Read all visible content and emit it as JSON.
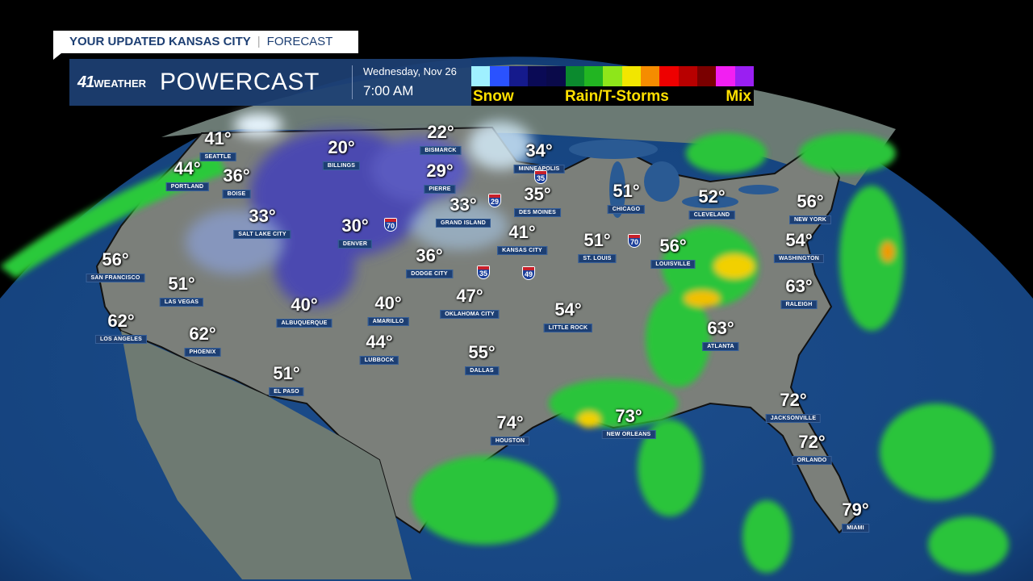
{
  "header": {
    "tab_title": "YOUR UPDATED KANSAS CITY",
    "tab_suffix": "FORECAST",
    "logo_number": "41",
    "logo_text": "WEATHER",
    "product": "POWERCAST",
    "date": "Wednesday, Nov 26",
    "time": "7:00 AM"
  },
  "legend": {
    "labels": {
      "snow": "Snow",
      "rain": "Rain/T-Storms",
      "mix": "Mix"
    },
    "colors": [
      "#9ff0ff",
      "#2a52ff",
      "#151a8c",
      "#0a0a55",
      "#0a0a4a",
      "#0b8a2e",
      "#22b522",
      "#8ee61a",
      "#f2e600",
      "#f58c00",
      "#ee0000",
      "#b80000",
      "#7a0000",
      "#f21ff2",
      "#9a1ff2"
    ]
  },
  "cities": [
    {
      "name": "SEATTLE",
      "temp": "41°"
    },
    {
      "name": "PORTLAND",
      "temp": "44°"
    },
    {
      "name": "BOISE",
      "temp": "36°"
    },
    {
      "name": "BILLINGS",
      "temp": "20°"
    },
    {
      "name": "BISMARCK",
      "temp": "22°"
    },
    {
      "name": "MINNEAPOLIS",
      "temp": "34°"
    },
    {
      "name": "PIERRE",
      "temp": "29°"
    },
    {
      "name": "GRAND ISLAND",
      "temp": "33°"
    },
    {
      "name": "DES MOINES",
      "temp": "35°"
    },
    {
      "name": "SALT LAKE CITY",
      "temp": "33°"
    },
    {
      "name": "DENVER",
      "temp": "30°"
    },
    {
      "name": "KANSAS CITY",
      "temp": "41°"
    },
    {
      "name": "DODGE CITY",
      "temp": "36°"
    },
    {
      "name": "SAN FRANCISCO",
      "temp": "56°"
    },
    {
      "name": "CHICAGO",
      "temp": "51°"
    },
    {
      "name": "CLEVELAND",
      "temp": "52°"
    },
    {
      "name": "NEW YORK",
      "temp": "56°"
    },
    {
      "name": "ST. LOUIS",
      "temp": "51°"
    },
    {
      "name": "LOUISVILLE",
      "temp": "56°"
    },
    {
      "name": "WASHINGTON",
      "temp": "54°"
    },
    {
      "name": "LAS VEGAS",
      "temp": "51°"
    },
    {
      "name": "ALBUQUERQUE",
      "temp": "40°"
    },
    {
      "name": "AMARILLO",
      "temp": "40°"
    },
    {
      "name": "OKLAHOMA CITY",
      "temp": "47°"
    },
    {
      "name": "LITTLE ROCK",
      "temp": "54°"
    },
    {
      "name": "RALEIGH",
      "temp": "63°"
    },
    {
      "name": "LOS ANGELES",
      "temp": "62°"
    },
    {
      "name": "PHOENIX",
      "temp": "62°"
    },
    {
      "name": "LUBBOCK",
      "temp": "44°"
    },
    {
      "name": "ATLANTA",
      "temp": "63°"
    },
    {
      "name": "DALLAS",
      "temp": "55°"
    },
    {
      "name": "EL PASO",
      "temp": "51°"
    },
    {
      "name": "HOUSTON",
      "temp": "74°"
    },
    {
      "name": "NEW ORLEANS",
      "temp": "73°"
    },
    {
      "name": "JACKSONVILLE",
      "temp": "72°"
    },
    {
      "name": "ORLANDO",
      "temp": "72°"
    },
    {
      "name": "MIAMI",
      "temp": "79°"
    }
  ],
  "interstates": [
    "35",
    "29",
    "70",
    "35",
    "49",
    "70"
  ]
}
